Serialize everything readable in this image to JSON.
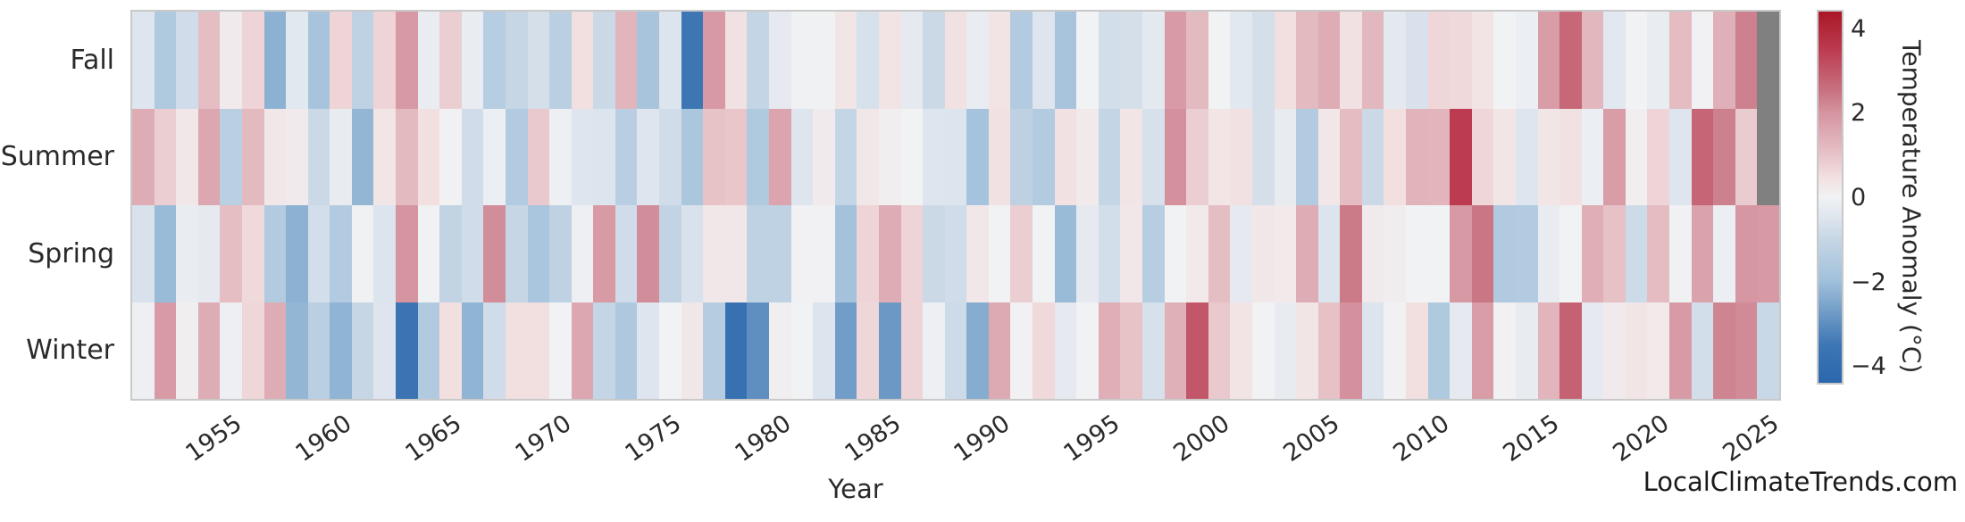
{
  "x_axis": {
    "label": "Year",
    "ticks": [
      1955,
      1960,
      1965,
      1970,
      1975,
      1980,
      1985,
      1990,
      1995,
      2000,
      2005,
      2010,
      2015,
      2020,
      2025
    ]
  },
  "watermark": "LocalClimateTrends.com",
  "colorbar": {
    "label": "Temperature Anomaly (°C)",
    "ticks": [
      {
        "label": "4",
        "value": 4
      },
      {
        "label": "2",
        "value": 2
      },
      {
        "label": "0",
        "value": 0
      },
      {
        "label": "−2",
        "value": -2
      },
      {
        "label": "−4",
        "value": -4
      }
    ],
    "vmin": -4.4,
    "vmax": 4.4,
    "missing_color": "#808080"
  },
  "chart_data": {
    "type": "heatmap",
    "title": "",
    "xlabel": "Year",
    "colorbar_label": "Temperature Anomaly (°C)",
    "value_range": [
      -4.4,
      4.4
    ],
    "missing_note": "Fall and Summer 2025 cells are gray (no data)",
    "x": [
      1951,
      1952,
      1953,
      1954,
      1955,
      1956,
      1957,
      1958,
      1959,
      1960,
      1961,
      1962,
      1963,
      1964,
      1965,
      1966,
      1967,
      1968,
      1969,
      1970,
      1971,
      1972,
      1973,
      1974,
      1975,
      1976,
      1977,
      1978,
      1979,
      1980,
      1981,
      1982,
      1983,
      1984,
      1985,
      1986,
      1987,
      1988,
      1989,
      1990,
      1991,
      1992,
      1993,
      1994,
      1995,
      1996,
      1997,
      1998,
      1999,
      2000,
      2001,
      2002,
      2003,
      2004,
      2005,
      2006,
      2007,
      2008,
      2009,
      2010,
      2011,
      2012,
      2013,
      2014,
      2015,
      2016,
      2017,
      2018,
      2019,
      2020,
      2021,
      2022,
      2023,
      2024,
      2025
    ],
    "rows": [
      "Fall",
      "Summer",
      "Spring",
      "Winter"
    ],
    "series": [
      {
        "name": "Fall",
        "values": [
          -0.5,
          -1.6,
          -0.8,
          1.1,
          0.2,
          0.7,
          -2.3,
          -0.4,
          -1.8,
          0.7,
          -1.2,
          0.7,
          1.9,
          -0.2,
          0.8,
          -0.2,
          -1.4,
          -1.0,
          -0.7,
          -1.3,
          0.5,
          -0.9,
          1.3,
          -1.8,
          -0.55,
          -3.5,
          1.9,
          0.45,
          -1.05,
          -0.3,
          -0.05,
          -0.05,
          0.35,
          -0.65,
          0.4,
          -0.3,
          -0.9,
          0.45,
          -0.2,
          0.4,
          -1.5,
          -0.5,
          -1.8,
          0.0,
          -0.75,
          -0.7,
          -0.35,
          1.85,
          1.2,
          0.0,
          -0.4,
          -0.7,
          0.5,
          1.2,
          1.5,
          0.45,
          1.25,
          -0.35,
          -0.6,
          0.65,
          0.6,
          0.4,
          0.0,
          -0.15,
          1.8,
          2.7,
          1.25,
          -0.4,
          0.0,
          -0.2,
          1.15,
          0.05,
          1.4,
          2.3,
          null
        ]
      },
      {
        "name": "Summer",
        "values": [
          1.5,
          0.8,
          0.3,
          1.6,
          -1.3,
          1.2,
          0.3,
          0.2,
          -0.9,
          -0.25,
          -2.2,
          0.35,
          1.2,
          0.5,
          0.05,
          -0.8,
          -0.15,
          -1.5,
          0.9,
          -0.1,
          -0.5,
          -0.55,
          -1.35,
          -0.5,
          -0.8,
          -1.7,
          1.0,
          0.95,
          -1.6,
          1.65,
          -0.5,
          0.2,
          -1.05,
          0.3,
          0.1,
          0.0,
          -0.5,
          -0.55,
          -1.85,
          0.45,
          -1.25,
          -1.5,
          0.45,
          0.25,
          -1.05,
          0.35,
          -0.65,
          2.05,
          0.8,
          0.35,
          0.45,
          -0.7,
          -0.25,
          -1.5,
          0.3,
          1.15,
          -0.9,
          0.5,
          1.35,
          1.3,
          3.5,
          0.65,
          0.35,
          -0.5,
          0.35,
          0.45,
          -0.15,
          1.8,
          0.1,
          0.7,
          -0.5,
          2.75,
          2.3,
          0.85,
          null
        ]
      },
      {
        "name": "Spring",
        "values": [
          -0.6,
          -2.1,
          -0.2,
          -0.3,
          1.1,
          0.6,
          -1.5,
          -2.3,
          -0.75,
          -1.5,
          -0.05,
          -0.55,
          2.0,
          -0.05,
          -1.1,
          -0.8,
          2.1,
          -1.0,
          -1.75,
          -1.2,
          -0.1,
          1.85,
          -0.8,
          2.1,
          -1.1,
          -0.6,
          0.3,
          0.3,
          -1.2,
          -1.2,
          0.05,
          0.05,
          -1.9,
          0.7,
          1.5,
          0.7,
          -0.9,
          -0.8,
          0.3,
          0.0,
          0.8,
          0.0,
          -2.1,
          -0.3,
          -0.75,
          0.3,
          -1.4,
          0.0,
          0.25,
          1.1,
          -0.3,
          0.3,
          0.25,
          1.5,
          -0.55,
          2.4,
          0.2,
          0.15,
          0.0,
          0.0,
          1.9,
          2.45,
          -1.55,
          -1.5,
          -0.25,
          0.0,
          1.45,
          1.05,
          -0.85,
          1.15,
          -0.05,
          1.7,
          -0.15,
          1.95,
          1.9
        ]
      },
      {
        "name": "Winter",
        "values": [
          -0.1,
          1.85,
          0.1,
          1.5,
          -0.1,
          0.65,
          1.5,
          -2.2,
          -1.3,
          -2.25,
          -1.0,
          -0.5,
          -3.6,
          -1.55,
          0.5,
          -2.25,
          -0.8,
          0.5,
          0.5,
          0.0,
          1.6,
          -1.05,
          -1.65,
          -0.5,
          0.0,
          0.3,
          -1.45,
          -3.8,
          -3.0,
          0.1,
          0.0,
          -0.55,
          -2.7,
          0.65,
          -2.8,
          0.7,
          -0.1,
          -0.85,
          -2.4,
          1.55,
          0.05,
          0.6,
          -0.3,
          0.0,
          1.45,
          1.0,
          -0.65,
          1.4,
          3.0,
          0.9,
          0.4,
          0.0,
          -0.25,
          0.35,
          1.05,
          2.05,
          -0.55,
          0.05,
          0.5,
          -1.6,
          -0.3,
          1.8,
          0.05,
          -0.25,
          1.3,
          2.8,
          -0.3,
          0.2,
          0.35,
          0.25,
          1.85,
          -0.75,
          2.25,
          2.15,
          -0.95
        ]
      }
    ],
    "colormap_stops": [
      [
        -4.4,
        42,
        103,
        173
      ],
      [
        -3.5,
        62,
        118,
        180
      ],
      [
        -2.5,
        127,
        167,
        205
      ],
      [
        -2.0,
        160,
        192,
        219
      ],
      [
        -1.0,
        198,
        214,
        229
      ],
      [
        -0.5,
        222,
        229,
        238
      ],
      [
        0.0,
        241,
        242,
        244
      ],
      [
        0.5,
        242,
        223,
        224
      ],
      [
        1.0,
        231,
        195,
        200
      ],
      [
        2.0,
        213,
        148,
        160
      ],
      [
        2.5,
        200,
        115,
        130
      ],
      [
        3.5,
        188,
        59,
        80
      ],
      [
        4.4,
        169,
        23,
        39
      ]
    ],
    "legend_position": "right-colorbar",
    "grid": false
  }
}
